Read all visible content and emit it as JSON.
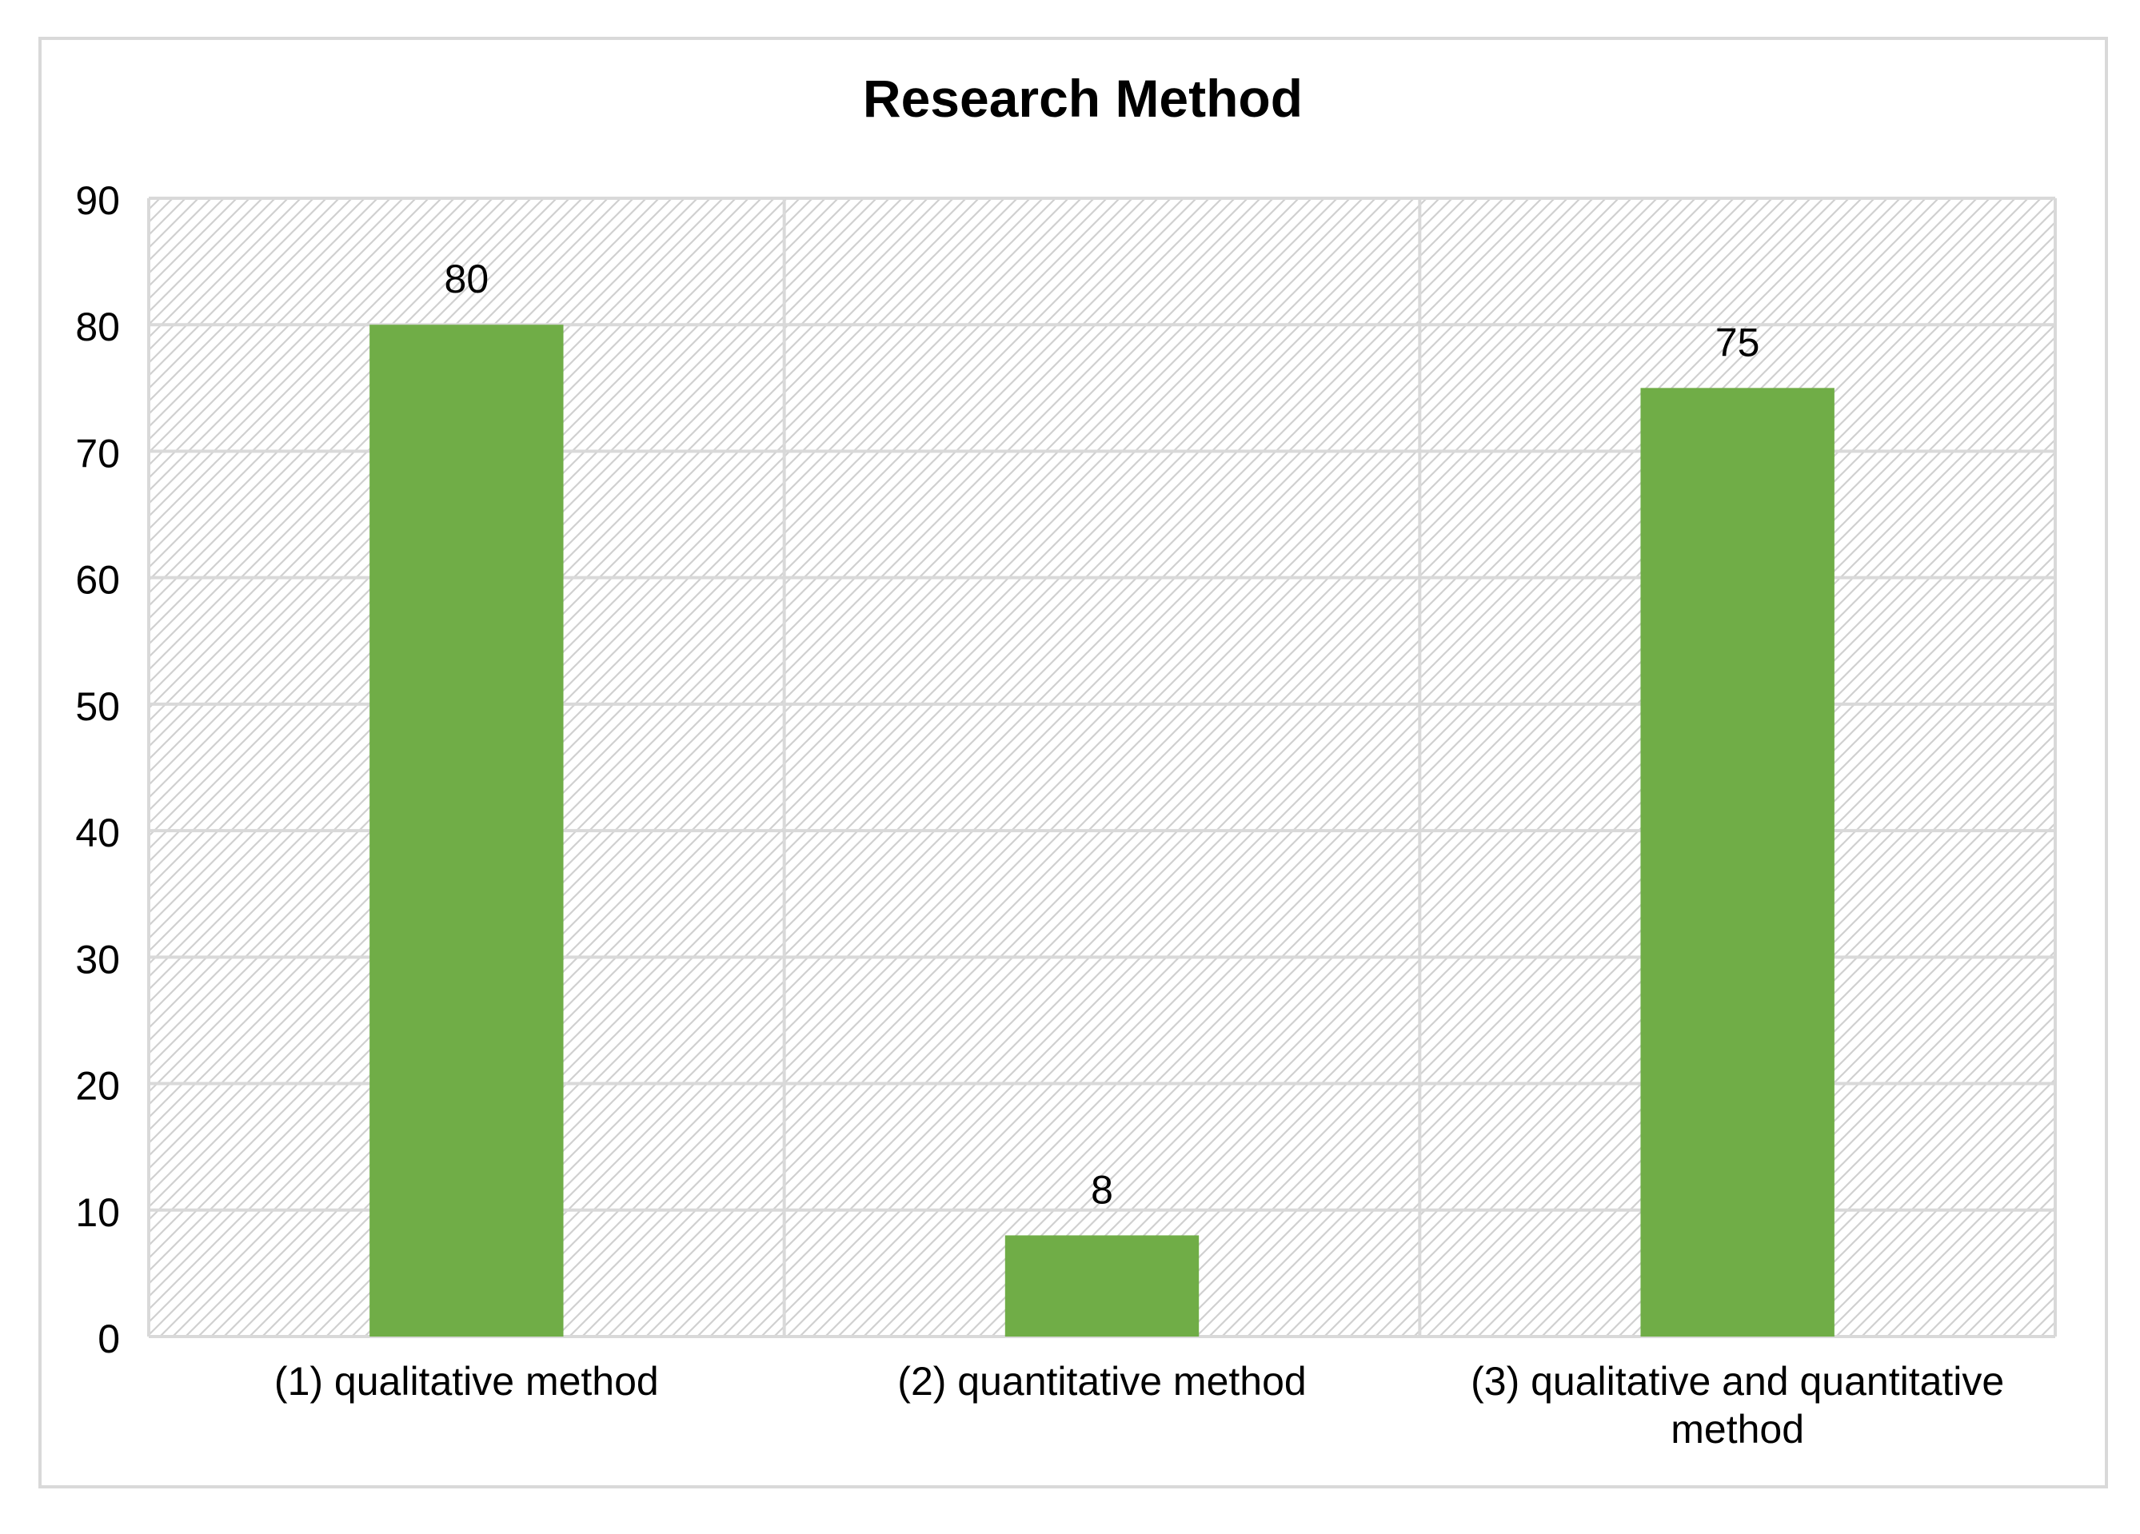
{
  "chart_data": {
    "type": "bar",
    "title": "Research Method",
    "xlabel": "",
    "ylabel": "",
    "categories": [
      [
        "(1) qualitative method"
      ],
      [
        "(2) quantitative method"
      ],
      [
        "(3) qualitative and quantitative",
        "method"
      ]
    ],
    "values": [
      80,
      8,
      75
    ],
    "data_labels": [
      "80",
      "8",
      "75"
    ],
    "ylim": [
      0,
      90
    ],
    "yticks": [
      0,
      10,
      20,
      30,
      40,
      50,
      60,
      70,
      80,
      90
    ],
    "grid": true,
    "legend": "none",
    "colors": {
      "bar": "#70ad47",
      "grid": "#d9d9d9",
      "hatch": "#d0d0d0",
      "text": "#000000"
    }
  }
}
